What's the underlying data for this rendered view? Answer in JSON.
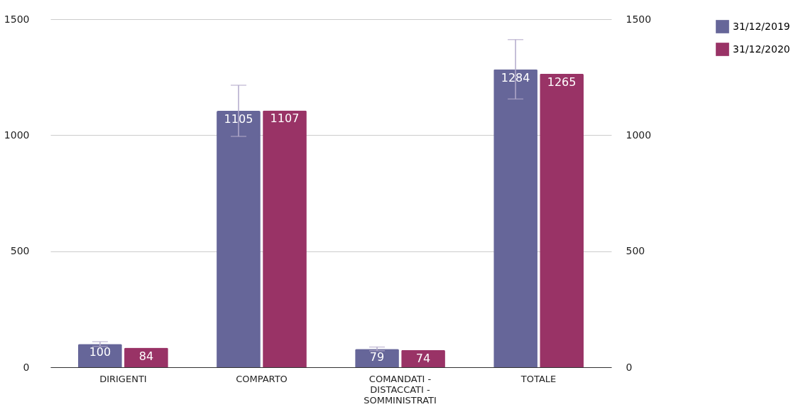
{
  "chart_data": {
    "type": "bar",
    "categories": [
      "DIRIGENTI",
      "COMPARTO",
      "COMANDATI - DISTACCATI - SOMMINISTRATI",
      "TOTALE"
    ],
    "series": [
      {
        "name": "31/12/2019",
        "color": "#666699",
        "values": [
          100,
          1105,
          79,
          1284
        ],
        "errors": [
          10,
          110,
          8,
          128
        ]
      },
      {
        "name": "31/12/2020",
        "color": "#993366",
        "values": [
          84,
          1107,
          74,
          1265
        ]
      }
    ],
    "ylim": [
      0,
      1500
    ],
    "yticks": [
      0,
      500,
      1000,
      1500
    ],
    "y2lim": [
      0,
      1500
    ],
    "y2ticks": [
      0,
      500,
      1000,
      1500
    ],
    "grid": "y",
    "legend": "top right",
    "data_labels": true
  }
}
